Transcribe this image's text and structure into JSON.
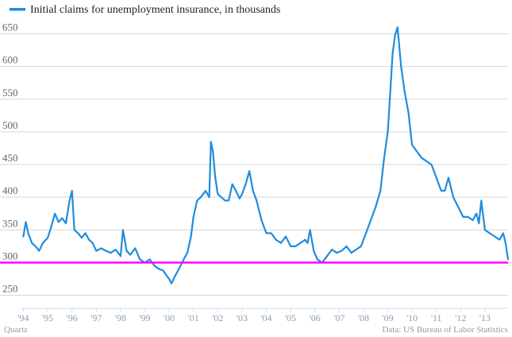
{
  "chart_data": {
    "type": "line",
    "title": "",
    "xlabel": "",
    "ylabel": "",
    "legend": {
      "label": "Initial claims for unemployment insurance, in thousands",
      "placement": "top-left"
    },
    "ylim": [
      230,
      675
    ],
    "xlim": [
      1993.92,
      2013.95
    ],
    "yticks": [
      250,
      300,
      350,
      400,
      450,
      500,
      550,
      600,
      650
    ],
    "xticks": [
      {
        "label": "'94",
        "x": 1994
      },
      {
        "label": "'95",
        "x": 1995
      },
      {
        "label": "'96",
        "x": 1996
      },
      {
        "label": "'97",
        "x": 1997
      },
      {
        "label": "'98",
        "x": 1998
      },
      {
        "label": "'99",
        "x": 1999
      },
      {
        "label": "'00",
        "x": 2000
      },
      {
        "label": "'01",
        "x": 2001
      },
      {
        "label": "'02",
        "x": 2002
      },
      {
        "label": "'03",
        "x": 2003
      },
      {
        "label": "'04",
        "x": 2004
      },
      {
        "label": "'05",
        "x": 2005
      },
      {
        "label": "'06",
        "x": 2006
      },
      {
        "label": "'07",
        "x": 2007
      },
      {
        "label": "'08",
        "x": 2008
      },
      {
        "label": "'09",
        "x": 2009
      },
      {
        "label": "'10",
        "x": 2010
      },
      {
        "label": "'11",
        "x": 2011
      },
      {
        "label": "'12",
        "x": 2012
      },
      {
        "label": "'13",
        "x": 2013
      }
    ],
    "grid": true,
    "reference_line": {
      "y": 300,
      "color": "#ff00ff"
    },
    "series": [
      {
        "name": "Initial claims for unemployment insurance, in thousands",
        "color": "#1f8cdd",
        "x": [
          1994.0,
          1994.1,
          1994.2,
          1994.35,
          1994.5,
          1994.65,
          1994.8,
          1995.0,
          1995.15,
          1995.3,
          1995.45,
          1995.6,
          1995.75,
          1995.9,
          1996.0,
          1996.1,
          1996.25,
          1996.4,
          1996.55,
          1996.7,
          1996.85,
          1997.0,
          1997.2,
          1997.4,
          1997.6,
          1997.8,
          1998.0,
          1998.1,
          1998.25,
          1998.4,
          1998.6,
          1998.8,
          1999.0,
          1999.2,
          1999.4,
          1999.6,
          1999.75,
          1999.9,
          2000.0,
          2000.1,
          2000.25,
          2000.4,
          2000.6,
          2000.75,
          2000.9,
          2001.0,
          2001.15,
          2001.3,
          2001.5,
          2001.65,
          2001.72,
          2001.8,
          2001.9,
          2002.0,
          2002.15,
          2002.3,
          2002.45,
          2002.6,
          2002.75,
          2002.9,
          2003.0,
          2003.15,
          2003.3,
          2003.45,
          2003.6,
          2003.8,
          2004.0,
          2004.2,
          2004.4,
          2004.6,
          2004.8,
          2005.0,
          2005.2,
          2005.4,
          2005.6,
          2005.7,
          2005.8,
          2005.95,
          2006.1,
          2006.3,
          2006.5,
          2006.7,
          2006.9,
          2007.1,
          2007.3,
          2007.5,
          2007.7,
          2007.9,
          2008.1,
          2008.3,
          2008.5,
          2008.7,
          2008.85,
          2009.0,
          2009.1,
          2009.2,
          2009.3,
          2009.4,
          2009.55,
          2009.7,
          2009.85,
          2010.0,
          2010.2,
          2010.4,
          2010.6,
          2010.8,
          2011.0,
          2011.2,
          2011.35,
          2011.5,
          2011.7,
          2011.9,
          2012.1,
          2012.3,
          2012.5,
          2012.65,
          2012.75,
          2012.85,
          2013.0,
          2013.2,
          2013.4,
          2013.6,
          2013.75,
          2013.85,
          2013.95
        ],
        "values": [
          340,
          362,
          345,
          330,
          325,
          318,
          330,
          338,
          355,
          375,
          362,
          368,
          360,
          395,
          410,
          350,
          345,
          338,
          345,
          335,
          330,
          318,
          322,
          318,
          315,
          320,
          310,
          350,
          318,
          312,
          322,
          305,
          300,
          305,
          295,
          290,
          288,
          280,
          275,
          268,
          280,
          290,
          305,
          315,
          340,
          370,
          395,
          400,
          410,
          400,
          485,
          470,
          430,
          405,
          400,
          395,
          395,
          420,
          410,
          398,
          405,
          420,
          440,
          410,
          395,
          365,
          345,
          345,
          335,
          330,
          340,
          325,
          325,
          330,
          335,
          330,
          350,
          318,
          305,
          300,
          310,
          320,
          315,
          318,
          325,
          315,
          320,
          325,
          345,
          365,
          385,
          410,
          460,
          500,
          560,
          620,
          648,
          660,
          600,
          560,
          530,
          480,
          470,
          460,
          455,
          450,
          430,
          410,
          410,
          430,
          400,
          385,
          370,
          370,
          365,
          375,
          360,
          395,
          350,
          345,
          340,
          335,
          345,
          330,
          305
        ]
      }
    ]
  },
  "footer": {
    "source_left": "Quartz",
    "source_right": "Data: US Bureau of Labor Statistics"
  }
}
